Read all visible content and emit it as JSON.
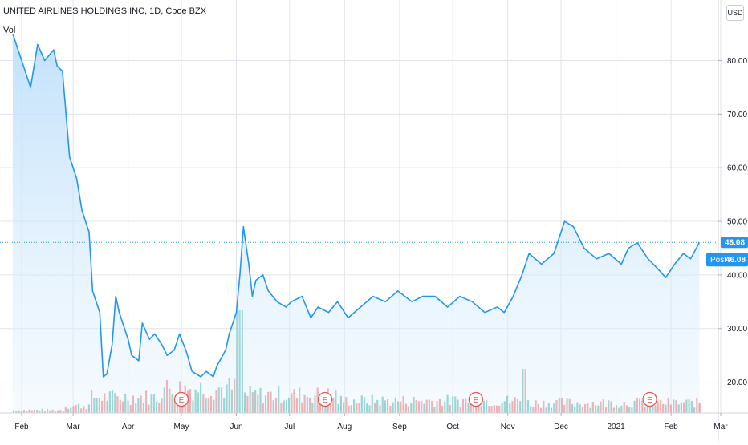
{
  "legend": {
    "symbol_title": "UNITED AIRLINES HOLDINGS INC, 1D, Cboe BZX",
    "volume_label": "Vol"
  },
  "price_axis": {
    "currency_button": "USD",
    "tick_labels": [
      "20.00",
      "30.00",
      "40.00",
      "50.00",
      "60.00",
      "70.00",
      "80.00"
    ],
    "last_price_label": "46.08",
    "post_badge_label": "Post",
    "post_price_label": "46.08"
  },
  "time_axis": {
    "tick_labels": [
      "Feb",
      "Mar",
      "Apr",
      "May",
      "Jun",
      "Jul",
      "Aug",
      "Sep",
      "Oct",
      "Nov",
      "Dec",
      "2021",
      "Feb",
      "Mar"
    ]
  },
  "earnings_marker_label": "E",
  "colors": {
    "line": "#2196f3",
    "area_top": "#bbdefb",
    "volume_up": "#26a69a",
    "volume_down": "#ef5350",
    "grid": "#e0e3eb",
    "axis_text": "#131722",
    "price_badge": "#2196f3"
  },
  "chart_data": {
    "type": "area",
    "title": "UNITED AIRLINES HOLDINGS INC, 1D, Cboe BZX",
    "xlabel": "",
    "ylabel": "",
    "ylim": [
      15,
      88
    ],
    "grid": true,
    "log_scale": false,
    "last_price": 46.08,
    "x_ticks": [
      "Feb",
      "Mar",
      "Apr",
      "May",
      "Jun",
      "Jul",
      "Aug",
      "Sep",
      "Oct",
      "Nov",
      "Dec",
      "2021",
      "Feb",
      "Mar"
    ],
    "y_ticks": [
      20,
      30,
      40,
      50,
      60,
      70,
      80
    ],
    "series": [
      {
        "name": "",
        "x": [
          "2020-01-27",
          "2020-02-03",
          "2020-02-06",
          "2020-02-10",
          "2020-02-14",
          "2020-02-19",
          "2020-02-21",
          "2020-02-24",
          "2020-02-26",
          "2020-02-28",
          "2020-03-03",
          "2020-03-06",
          "2020-03-10",
          "2020-03-12",
          "2020-03-16",
          "2020-03-18",
          "2020-03-20",
          "2020-03-23",
          "2020-03-25",
          "2020-03-27",
          "2020-04-01",
          "2020-04-03",
          "2020-04-07",
          "2020-04-09",
          "2020-04-13",
          "2020-04-16",
          "2020-04-20",
          "2020-04-23",
          "2020-04-27",
          "2020-04-30",
          "2020-05-04",
          "2020-05-07",
          "2020-05-12",
          "2020-05-15",
          "2020-05-19",
          "2020-05-21",
          "2020-05-26",
          "2020-05-28",
          "2020-06-01",
          "2020-06-03",
          "2020-06-05",
          "2020-06-08",
          "2020-06-10",
          "2020-06-12",
          "2020-06-16",
          "2020-06-19",
          "2020-06-24",
          "2020-06-29",
          "2020-07-02",
          "2020-07-08",
          "2020-07-13",
          "2020-07-17",
          "2020-07-23",
          "2020-07-28",
          "2020-08-03",
          "2020-08-10",
          "2020-08-17",
          "2020-08-24",
          "2020-08-31",
          "2020-09-08",
          "2020-09-14",
          "2020-09-21",
          "2020-09-28",
          "2020-10-05",
          "2020-10-12",
          "2020-10-19",
          "2020-10-26",
          "2020-10-30",
          "2020-11-04",
          "2020-11-09",
          "2020-11-13",
          "2020-11-20",
          "2020-11-27",
          "2020-12-03",
          "2020-12-08",
          "2020-12-14",
          "2020-12-21",
          "2020-12-28",
          "2021-01-04",
          "2021-01-08",
          "2021-01-13",
          "2021-01-19",
          "2021-01-25",
          "2021-01-29",
          "2021-02-03",
          "2021-02-08",
          "2021-02-12",
          "2021-02-17"
        ],
        "values": [
          85,
          78,
          75,
          83,
          80,
          82,
          79,
          78,
          70,
          62,
          58,
          52,
          48,
          37,
          33,
          21,
          21.5,
          27,
          36,
          33,
          28,
          25,
          24,
          31,
          28,
          29,
          27,
          25,
          26,
          29,
          25.5,
          22,
          21,
          22,
          21,
          23,
          26,
          29,
          33,
          40,
          49,
          42,
          36,
          39,
          40,
          37,
          35,
          34,
          35,
          36,
          32,
          34,
          33,
          35,
          32,
          34,
          36,
          35,
          37,
          35,
          36,
          36,
          34,
          36,
          35,
          33,
          34,
          33,
          36,
          40,
          44,
          42,
          44,
          50,
          49,
          45,
          43,
          44,
          42,
          45,
          46,
          43,
          41,
          39.5,
          42,
          44,
          43,
          46.08
        ]
      }
    ],
    "volume": {
      "name": "Vol",
      "note": "relative volume bars, green = up day, red = down day",
      "x_start": "2020-01-27",
      "x_end": "2021-02-18",
      "bars": 265
    },
    "earnings_events": [
      "2020-05-01",
      "2020-07-21",
      "2020-10-14",
      "2021-01-20"
    ]
  }
}
